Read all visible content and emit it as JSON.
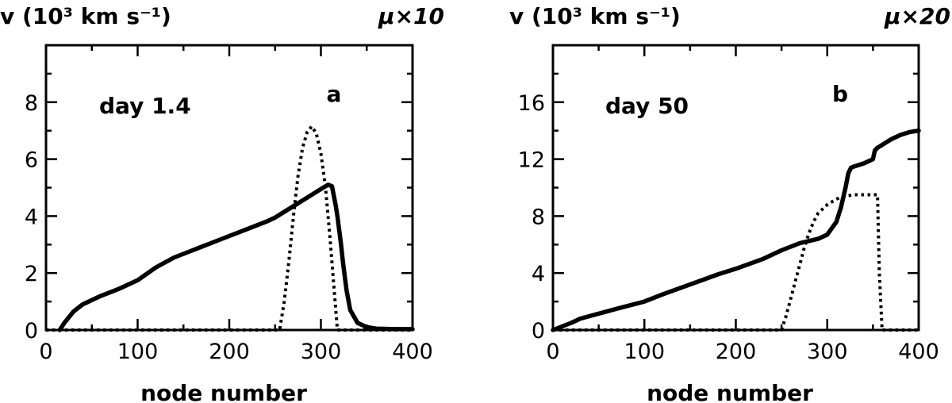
{
  "chart_data": [
    {
      "type": "line",
      "panel": "a",
      "ylabel": "v  (10³ km s⁻¹)",
      "scale_label": "μ×10",
      "annotation": "day 1.4",
      "xlabel": "node number",
      "xlim": [
        0,
        400
      ],
      "ylim": [
        0,
        10
      ],
      "xticks": [
        0,
        100,
        200,
        300,
        400
      ],
      "yticks": [
        0,
        2,
        4,
        6,
        8
      ],
      "xtick_labels": [
        "0",
        "100",
        "200",
        "300",
        "400"
      ],
      "ytick_labels": [
        "0",
        "2",
        "4",
        "6",
        "8"
      ],
      "series": [
        {
          "name": "v",
          "style": "solid",
          "x": [
            15,
            20,
            30,
            40,
            50,
            60,
            80,
            100,
            120,
            140,
            160,
            180,
            200,
            220,
            240,
            250,
            260,
            280,
            300,
            308,
            312,
            316,
            318,
            322,
            324,
            326,
            328,
            332,
            340,
            350,
            360,
            380,
            400
          ],
          "y": [
            0,
            0.25,
            0.65,
            0.9,
            1.05,
            1.2,
            1.45,
            1.75,
            2.2,
            2.55,
            2.8,
            3.05,
            3.3,
            3.55,
            3.8,
            3.95,
            4.15,
            4.55,
            4.95,
            5.1,
            5.05,
            4.4,
            4.0,
            3.0,
            2.4,
            1.9,
            1.4,
            0.7,
            0.25,
            0.1,
            0.05,
            0.03,
            0.03
          ]
        },
        {
          "name": "μ×10",
          "style": "dotted",
          "x": [
            0,
            255,
            260,
            265,
            270,
            275,
            280,
            285,
            290,
            295,
            300,
            305,
            310,
            315,
            318,
            400
          ],
          "y": [
            0,
            0,
            1.0,
            2.4,
            4.0,
            5.4,
            6.4,
            6.95,
            7.15,
            6.9,
            6.2,
            5.0,
            3.2,
            1.2,
            0,
            0
          ]
        }
      ]
    },
    {
      "type": "line",
      "panel": "b",
      "ylabel": "v  (10³ km s⁻¹)",
      "scale_label": "μ×20",
      "annotation": "day 50",
      "xlabel": "node number",
      "xlim": [
        0,
        400
      ],
      "ylim": [
        0,
        20
      ],
      "xticks": [
        0,
        100,
        200,
        300,
        400
      ],
      "yticks": [
        0,
        4,
        8,
        12,
        16
      ],
      "xtick_labels": [
        "0",
        "100",
        "200",
        "300",
        "400"
      ],
      "ytick_labels": [
        "0",
        "4",
        "8",
        "12",
        "16"
      ],
      "series": [
        {
          "name": "v",
          "style": "solid",
          "x": [
            0,
            10,
            20,
            30,
            50,
            70,
            100,
            120,
            150,
            180,
            200,
            230,
            250,
            270,
            290,
            300,
            310,
            315,
            320,
            323,
            326,
            330,
            335,
            340,
            350,
            352,
            355,
            360,
            370,
            380,
            390,
            400
          ],
          "y": [
            0,
            0.25,
            0.5,
            0.8,
            1.15,
            1.5,
            2.0,
            2.5,
            3.2,
            3.9,
            4.3,
            5.0,
            5.6,
            6.1,
            6.4,
            6.7,
            7.6,
            8.6,
            10.0,
            11.0,
            11.4,
            11.5,
            11.6,
            11.7,
            12.0,
            12.6,
            12.8,
            13.0,
            13.4,
            13.7,
            13.9,
            14.0
          ]
        },
        {
          "name": "μ×20",
          "style": "dotted",
          "x": [
            0,
            250,
            255,
            260,
            265,
            270,
            275,
            280,
            285,
            290,
            300,
            310,
            320,
            330,
            340,
            350,
            355,
            357,
            360,
            400
          ],
          "y": [
            0,
            0,
            1.0,
            2.2,
            3.4,
            4.6,
            5.8,
            6.8,
            7.6,
            8.2,
            8.8,
            9.2,
            9.4,
            9.5,
            9.5,
            9.5,
            9.5,
            4.0,
            0,
            0
          ]
        }
      ]
    }
  ],
  "panel_labels": [
    "a",
    "b"
  ]
}
